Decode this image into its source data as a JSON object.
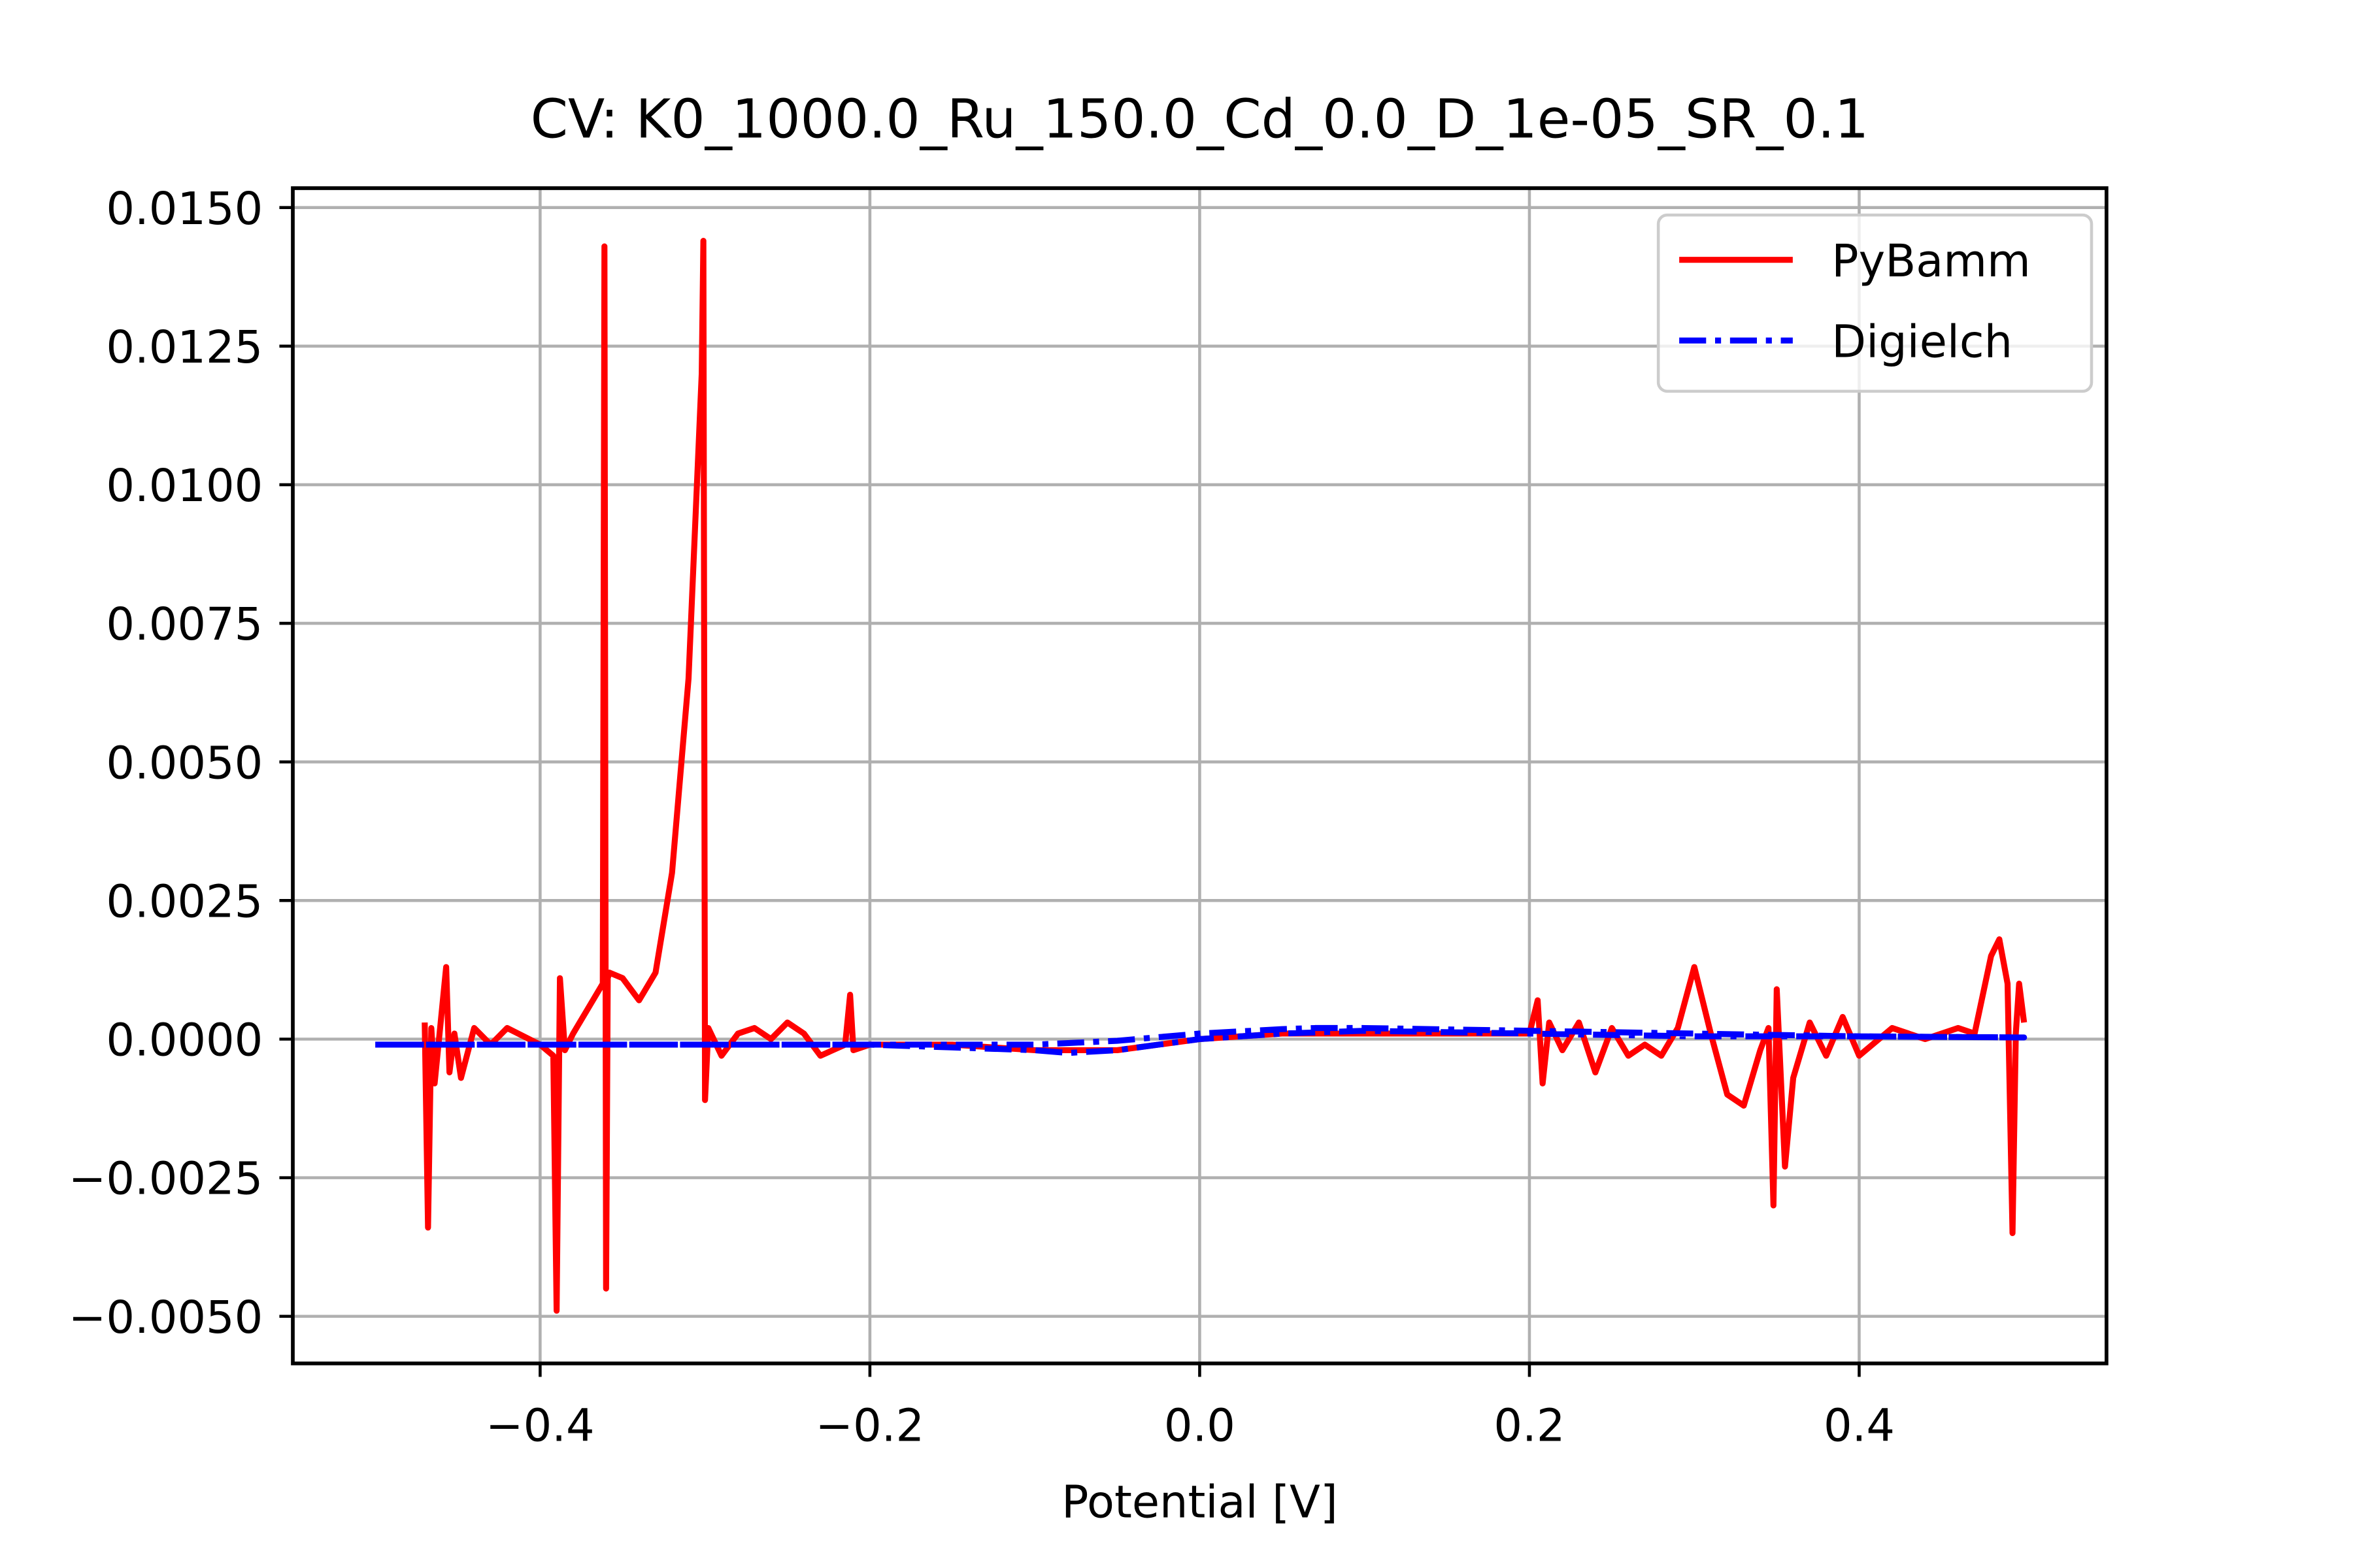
{
  "chart_data": {
    "type": "line",
    "title": "CV: K0_1000.0_Ru_150.0_Cd_0.0_D_1e-05_SR_0.1",
    "x_label": "Potential [V]",
    "xlim": [
      -0.55,
      0.55
    ],
    "ylim": [
      -0.00585,
      0.01535
    ],
    "xticks": [
      {
        "value": -0.4,
        "label": "−0.4"
      },
      {
        "value": -0.2,
        "label": "−0.2"
      },
      {
        "value": 0,
        "label": "0.0"
      },
      {
        "value": 0.2,
        "label": "0.2"
      },
      {
        "value": 0.4,
        "label": "0.4"
      }
    ],
    "yticks": [
      {
        "value": -0.005,
        "label": "−0.0050"
      },
      {
        "value": -0.0025,
        "label": "−0.0025"
      },
      {
        "value": 0,
        "label": "0.0000"
      },
      {
        "value": 0.0025,
        "label": "0.0025"
      },
      {
        "value": 0.005,
        "label": "0.0050"
      },
      {
        "value": 0.0075,
        "label": "0.0075"
      },
      {
        "value": 0.01,
        "label": "0.0100"
      },
      {
        "value": 0.0125,
        "label": "0.0125"
      },
      {
        "value": 0.015,
        "label": "0.0150"
      }
    ],
    "grid": true,
    "legend": "upper right",
    "series": [
      {
        "name": "PyBamm",
        "color": "#ff0000",
        "dash": "solid",
        "x": [
          -0.47,
          -0.468,
          -0.466,
          -0.464,
          -0.46,
          -0.457,
          -0.455,
          -0.452,
          -0.448,
          -0.44,
          -0.43,
          -0.42,
          -0.4,
          -0.392,
          -0.39,
          -0.388,
          -0.385,
          -0.38,
          -0.37,
          -0.362,
          -0.361,
          -0.36,
          -0.359,
          -0.358,
          -0.35,
          -0.34,
          -0.33,
          -0.32,
          -0.31,
          -0.302,
          -0.301,
          -0.3,
          -0.298,
          -0.29,
          -0.28,
          -0.27,
          -0.26,
          -0.25,
          -0.24,
          -0.23,
          -0.215,
          -0.212,
          -0.21,
          -0.2,
          -0.15,
          -0.1,
          -0.05,
          0,
          0.05,
          0.1,
          0.15,
          0.2,
          0.205,
          0.208,
          0.212,
          0.22,
          0.23,
          0.24,
          0.25,
          0.26,
          0.27,
          0.28,
          0.29,
          0.3,
          0.31,
          0.32,
          0.33,
          0.34,
          0.345,
          0.348,
          0.35,
          0.355,
          0.36,
          0.37,
          0.38,
          0.39,
          0.4,
          0.42,
          0.44,
          0.46,
          0.47,
          0.48,
          0.485,
          0.49,
          0.493,
          0.495,
          0.497,
          0.5
        ],
        "values": [
          0.0003,
          -0.0034,
          0.0002,
          -0.0008,
          0.0004,
          0.0013,
          -0.0006,
          0.0001,
          -0.0007,
          0.0002,
          -0.0001,
          0.0002,
          -0.0001,
          -0.0003,
          -0.0049,
          0.0011,
          -0.0002,
          0.0001,
          0.0006,
          0.001,
          0.0143,
          -0.0045,
          0.0011,
          0.0012,
          0.0011,
          0.0007,
          0.0012,
          0.003,
          0.0065,
          0.012,
          0.0144,
          -0.0011,
          0.0002,
          -0.0003,
          0.0001,
          0.0002,
          0,
          0.0003,
          0.0001,
          -0.0003,
          -0.0001,
          0.0008,
          -0.0002,
          -0.0001,
          -0.0001,
          -0.0002,
          -0.0002,
          0,
          0.0001,
          0.0001,
          0.0001,
          0.0001,
          0.0007,
          -0.0008,
          0.0003,
          -0.0002,
          0.0003,
          -0.0006,
          0.0002,
          -0.0003,
          -0.0001,
          -0.0003,
          0.0002,
          0.0013,
          0.0001,
          -0.001,
          -0.0012,
          -0.0002,
          0.0002,
          -0.003,
          0.0009,
          -0.0023,
          -0.0007,
          0.0003,
          -0.0003,
          0.0004,
          -0.0003,
          0.0002,
          0,
          0.0002,
          0.0001,
          0.0015,
          0.0018,
          0.001,
          -0.0035,
          0.0001,
          0.001,
          0.0003
        ]
      },
      {
        "name": "Digielch",
        "color": "#0000ff",
        "dash": "dashdot",
        "x": [
          -0.5,
          -0.4,
          -0.3,
          -0.2,
          -0.15,
          -0.1,
          -0.08,
          -0.05,
          0,
          0.05,
          0.1,
          0.2,
          0.3,
          0.4,
          0.5,
          0.4,
          0.3,
          0.2,
          0.1,
          0.07,
          0.05,
          0,
          -0.05,
          -0.1,
          -0.2,
          -0.3,
          -0.4,
          -0.5
        ],
        "values": [
          -0.0001,
          -0.0001,
          -0.0001,
          -0.0001,
          -0.00015,
          -0.0002,
          -0.00025,
          -0.0002,
          0,
          0.0001,
          0.00015,
          0.0001,
          5e-05,
          5e-05,
          3e-05,
          5e-05,
          0.0001,
          0.00015,
          0.0002,
          0.0002,
          0.00018,
          0.0001,
          -3e-05,
          -0.0001,
          -0.0001,
          -0.0001,
          -0.0001,
          -0.0001
        ]
      }
    ]
  }
}
